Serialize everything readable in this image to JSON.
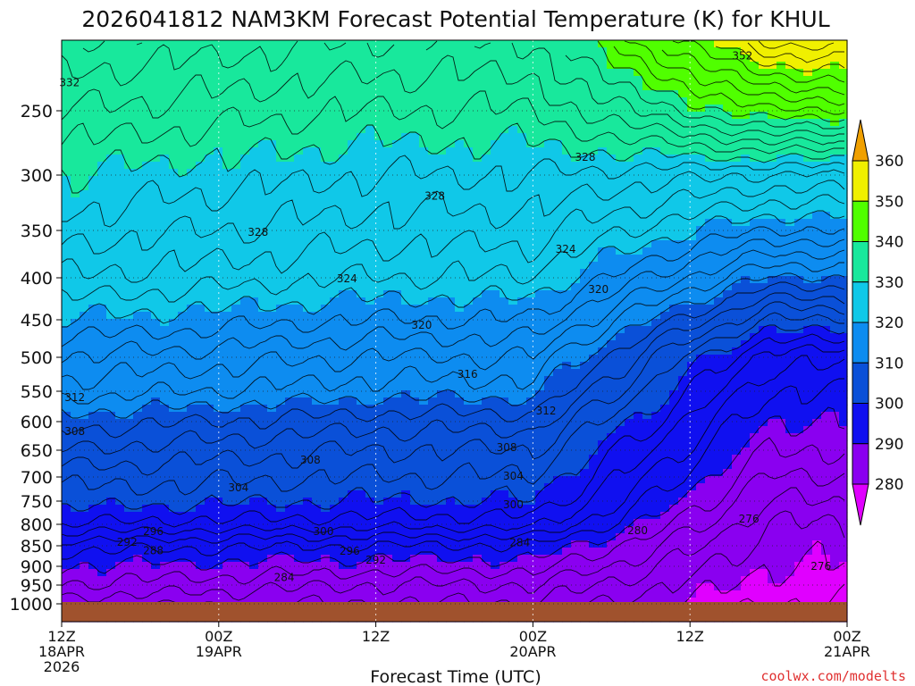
{
  "chart_data": {
    "type": "heatmap",
    "title": "2026041812 NAM3KM Forecast Potential Temperature (K) for KHUL",
    "xlabel": "Forecast Time (UTC)",
    "ylabel": "",
    "credit": "coolwx.com/modelts",
    "y_scale": "pressure (hPa), log-like",
    "y_ticks": [
      250,
      300,
      350,
      400,
      450,
      500,
      550,
      600,
      650,
      700,
      750,
      800,
      850,
      900,
      950,
      1000
    ],
    "y_tick_labels": [
      "250",
      "300",
      "350",
      "400",
      "450",
      "500",
      "550",
      "600",
      "650",
      "700",
      "750",
      "800",
      "850",
      "900",
      "950",
      "1000"
    ],
    "x_ticks": [
      {
        "hour": 12,
        "lines": [
          "12Z",
          "18APR",
          "2026"
        ]
      },
      {
        "hour": 24,
        "lines": [
          "00Z",
          "19APR"
        ]
      },
      {
        "hour": 36,
        "lines": [
          "12Z"
        ]
      },
      {
        "hour": 48,
        "lines": [
          "00Z",
          "20APR"
        ]
      },
      {
        "hour": 60,
        "lines": [
          "12Z"
        ]
      },
      {
        "hour": 72,
        "lines": [
          "00Z",
          "21APR"
        ]
      }
    ],
    "x_range_hours": [
      12,
      72
    ],
    "y_range_hpa": [
      200,
      1025
    ],
    "grid": true,
    "colorbar": {
      "levels": [
        280,
        290,
        300,
        310,
        320,
        330,
        340,
        350,
        360
      ],
      "labels": [
        "280",
        "290",
        "300",
        "310",
        "320",
        "330",
        "340",
        "350",
        "360"
      ],
      "colors": [
        "#e000ff",
        "#8a00f0",
        "#1010f0",
        "#0a50d8",
        "#0d8cf0",
        "#10c8e8",
        "#18e89c",
        "#50ff00",
        "#f0f000",
        "#f0a000"
      ],
      "extend": "both"
    },
    "contour_interval_K": 2,
    "contour_labels": [
      {
        "value": "332",
        "hour": 12.6,
        "hpa": 230
      },
      {
        "value": "328",
        "hour": 27.0,
        "hpa": 352
      },
      {
        "value": "328",
        "hour": 40.5,
        "hpa": 319
      },
      {
        "value": "328",
        "hour": 52.0,
        "hpa": 286
      },
      {
        "value": "324",
        "hour": 33.8,
        "hpa": 401
      },
      {
        "value": "324",
        "hour": 50.5,
        "hpa": 370
      },
      {
        "value": "320",
        "hour": 39.5,
        "hpa": 457
      },
      {
        "value": "320",
        "hour": 53.0,
        "hpa": 414
      },
      {
        "value": "316",
        "hour": 43.0,
        "hpa": 525
      },
      {
        "value": "312",
        "hour": 13.0,
        "hpa": 560
      },
      {
        "value": "312",
        "hour": 49.0,
        "hpa": 582
      },
      {
        "value": "308",
        "hour": 13.0,
        "hpa": 617
      },
      {
        "value": "308",
        "hour": 31.0,
        "hpa": 668
      },
      {
        "value": "308",
        "hour": 46.0,
        "hpa": 645
      },
      {
        "value": "304",
        "hour": 25.5,
        "hpa": 722
      },
      {
        "value": "304",
        "hour": 46.5,
        "hpa": 698
      },
      {
        "value": "300",
        "hour": 46.5,
        "hpa": 758
      },
      {
        "value": "300",
        "hour": 32.0,
        "hpa": 817
      },
      {
        "value": "296",
        "hour": 19.0,
        "hpa": 817
      },
      {
        "value": "296",
        "hour": 34.0,
        "hpa": 863
      },
      {
        "value": "292",
        "hour": 17.0,
        "hpa": 842
      },
      {
        "value": "292",
        "hour": 36.0,
        "hpa": 885
      },
      {
        "value": "288",
        "hour": 19.0,
        "hpa": 862
      },
      {
        "value": "284",
        "hour": 29.0,
        "hpa": 930
      },
      {
        "value": "284",
        "hour": 47.0,
        "hpa": 843
      },
      {
        "value": "280",
        "hour": 56.0,
        "hpa": 815
      },
      {
        "value": "276",
        "hour": 64.5,
        "hpa": 788
      },
      {
        "value": "276",
        "hour": 70.0,
        "hpa": 900
      },
      {
        "value": "352",
        "hour": 64.0,
        "hpa": 211
      }
    ],
    "surface_color": "#a0522d"
  }
}
